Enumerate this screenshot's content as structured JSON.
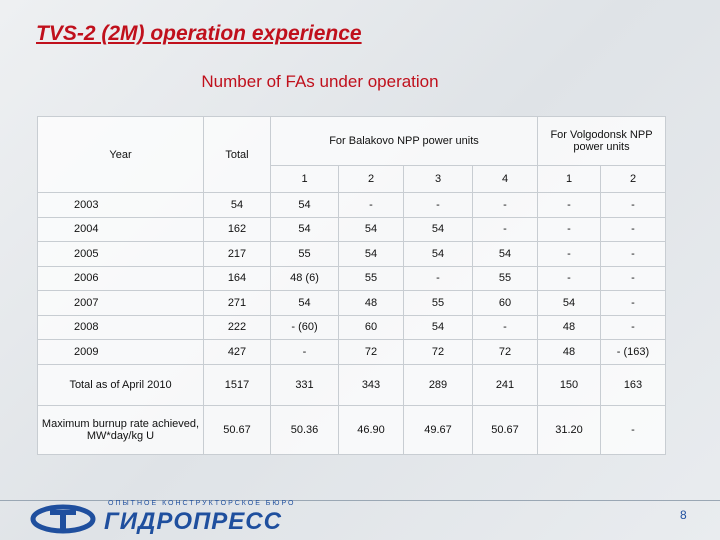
{
  "header": {
    "title": "TVS-2 (2M) operation experience",
    "subtitle": "Number of FAs under operation"
  },
  "table": {
    "head": {
      "year": "Year",
      "total": "Total",
      "balakovo": "For Balakovo NPP power units",
      "volgodonsk": "For Volgodonsk NPP power units",
      "units": [
        "1",
        "2",
        "3",
        "4",
        "1",
        "2"
      ]
    },
    "rows": [
      [
        "2003",
        "54",
        "54",
        "-",
        "-",
        "-",
        "-",
        "-"
      ],
      [
        "2004",
        "162",
        "54",
        "54",
        "54",
        "-",
        "-",
        "-"
      ],
      [
        "2005",
        "217",
        "55",
        "54",
        "54",
        "54",
        "-",
        "-"
      ],
      [
        "2006",
        "164",
        "48 (6)",
        "55",
        "-",
        "55",
        "-",
        "-"
      ],
      [
        "2007",
        "271",
        "54",
        "48",
        "55",
        "60",
        "54",
        "-"
      ],
      [
        "2008",
        "222",
        "- (60)",
        "60",
        "54",
        "-",
        "48",
        "-"
      ],
      [
        "2009",
        "427",
        "-",
        "72",
        "72",
        "72",
        "48",
        "- (163)"
      ],
      [
        "Total as of April 2010",
        "1517",
        "331",
        "343",
        "289",
        "241",
        "150",
        "163"
      ],
      [
        "Maximum burnup rate achieved, MW*day/kg U",
        "50.67",
        "50.36",
        "46.90",
        "49.67",
        "50.67",
        "31.20",
        "-"
      ]
    ]
  },
  "footer": {
    "logo_tagline": "ОПЫТНОЕ КОНСТРУКТОРСКОЕ БЮРО",
    "logo_name": "ГИДРОПРЕСС",
    "page": "8"
  }
}
